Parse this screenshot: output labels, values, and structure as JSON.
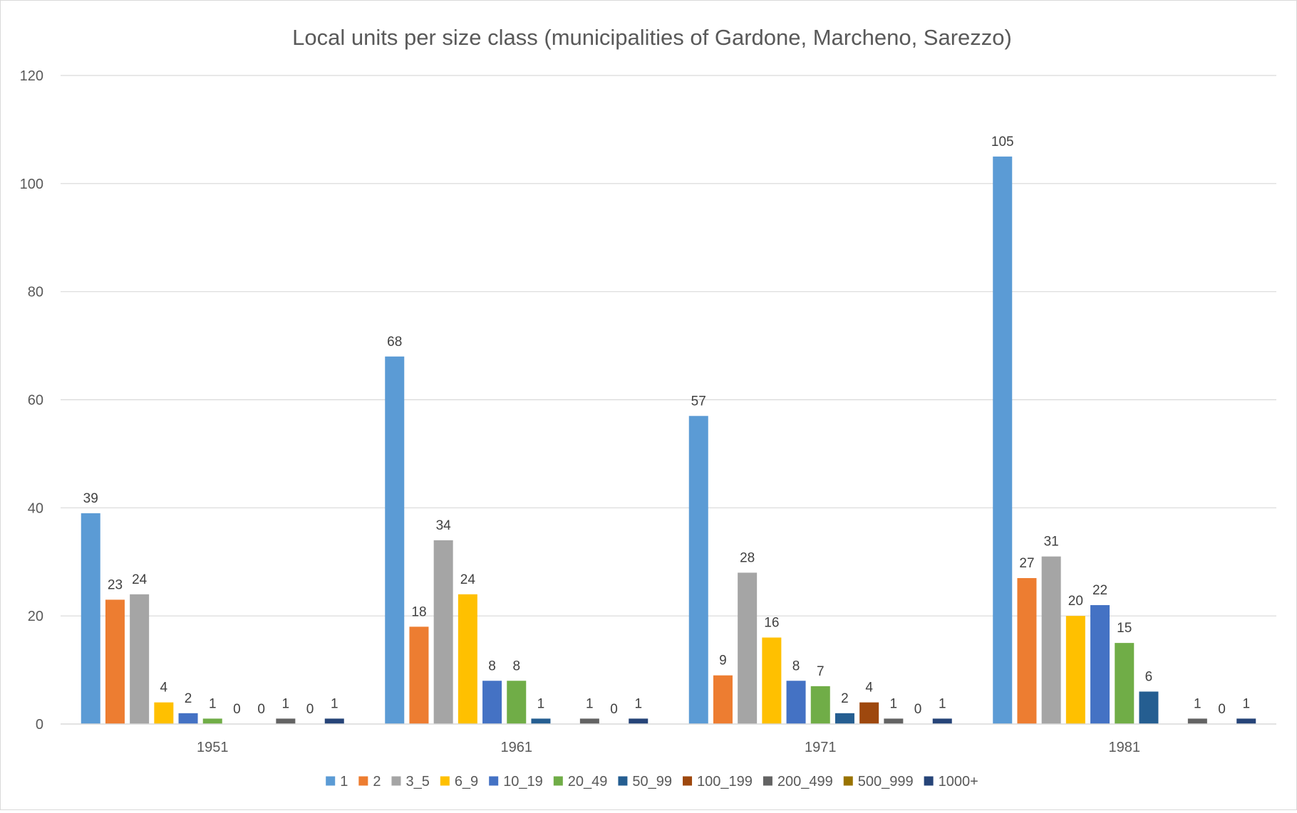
{
  "chart_data": {
    "type": "bar",
    "title": "Local units per size class (municipalities of Gardone, Marcheno, Sarezzo)",
    "xlabel": "",
    "ylabel": "",
    "categories": [
      "1951",
      "1961",
      "1971",
      "1981"
    ],
    "ylim": [
      0,
      120
    ],
    "yticks": [
      "0",
      "20",
      "40",
      "60",
      "80",
      "100",
      "120"
    ],
    "grid": true,
    "legend_position": "bottom",
    "series": [
      {
        "name": "1",
        "color": "#5B9BD5",
        "values": [
          39,
          68,
          57,
          105
        ],
        "labels": [
          "39",
          "68",
          "57",
          "105"
        ]
      },
      {
        "name": "2",
        "color": "#ED7D31",
        "values": [
          23,
          18,
          9,
          27
        ],
        "labels": [
          "23",
          "18",
          "9",
          "27"
        ]
      },
      {
        "name": "3_5",
        "color": "#A5A5A5",
        "values": [
          24,
          34,
          28,
          31
        ],
        "labels": [
          "24",
          "34",
          "28",
          "31"
        ]
      },
      {
        "name": "6_9",
        "color": "#FFC000",
        "values": [
          4,
          24,
          16,
          20
        ],
        "labels": [
          "4",
          "24",
          "16",
          "20"
        ]
      },
      {
        "name": "10_19",
        "color": "#4472C4",
        "values": [
          2,
          8,
          8,
          22
        ],
        "labels": [
          "2",
          "8",
          "8",
          "22"
        ]
      },
      {
        "name": "20_49",
        "color": "#70AD47",
        "values": [
          1,
          8,
          7,
          15
        ],
        "labels": [
          "1",
          "8",
          "7",
          "15"
        ]
      },
      {
        "name": "50_99",
        "color": "#255E91",
        "values": [
          0,
          1,
          2,
          6
        ],
        "labels": [
          "0",
          "1",
          "2",
          "6"
        ]
      },
      {
        "name": "100_199",
        "color": "#9E480E",
        "values": [
          0,
          0,
          4,
          0
        ],
        "labels": [
          "0",
          "",
          "4",
          ""
        ]
      },
      {
        "name": "200_499",
        "color": "#636363",
        "values": [
          1,
          1,
          1,
          1
        ],
        "labels": [
          "1",
          "1",
          "1",
          "1"
        ]
      },
      {
        "name": "500_999",
        "color": "#997300",
        "values": [
          0,
          0,
          0,
          0
        ],
        "labels": [
          "0",
          "0",
          "0",
          "0"
        ]
      },
      {
        "name": "1000+",
        "color": "#264478",
        "values": [
          1,
          1,
          1,
          1
        ],
        "labels": [
          "1",
          "1",
          "1",
          "1"
        ]
      }
    ]
  }
}
